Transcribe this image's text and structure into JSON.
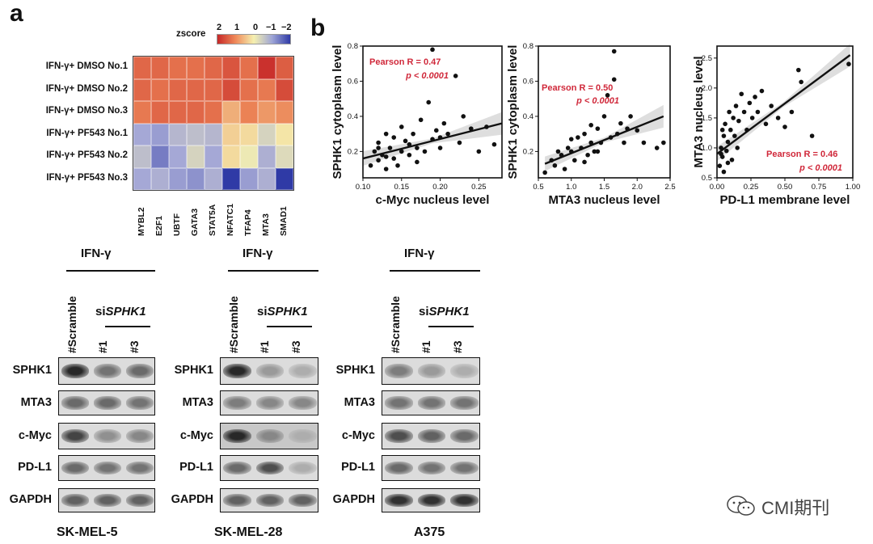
{
  "panel_a": {
    "letter": "a",
    "heatmap": {
      "zscore_label": "zscore",
      "zscore_ticks": [
        "2",
        "1",
        "0",
        "−1",
        "−2"
      ],
      "rows": [
        "IFN-γ+ DMSO No.1",
        "IFN-γ+ DMSO No.2",
        "IFN-γ+ DMSO No.3",
        "IFN-γ+ PF543 No.1",
        "IFN-γ+ PF543 No.2",
        "IFN-γ+ PF543 No.3"
      ],
      "columns": [
        "MYBL2",
        "E2F1",
        "UBTF",
        "GATA3",
        "STAT5A",
        "NFATC1",
        "TFAP4",
        "MTA3",
        "SMAD1"
      ],
      "values": [
        [
          1.3,
          1.3,
          1.2,
          1.2,
          1.3,
          1.5,
          1.2,
          1.9,
          1.4
        ],
        [
          1.3,
          1.2,
          1.3,
          1.3,
          1.3,
          1.6,
          1.2,
          1.1,
          1.6
        ],
        [
          1.1,
          1.3,
          1.3,
          1.3,
          1.2,
          0.6,
          1.0,
          0.8,
          0.9
        ],
        [
          -1.0,
          -1.1,
          -0.8,
          -0.7,
          -0.8,
          0.3,
          0.2,
          -0.4,
          0.1
        ],
        [
          -0.7,
          -1.4,
          -1.0,
          -0.4,
          -1.0,
          0.2,
          -0.1,
          -0.9,
          -0.3
        ],
        [
          -1.0,
          -0.9,
          -1.1,
          -1.2,
          -0.9,
          -2.0,
          -1.1,
          -0.9,
          -2.0
        ]
      ]
    }
  },
  "panel_b": {
    "letter": "b",
    "chart_data": [
      {
        "type": "scatter",
        "xlabel": "c-Myc nucleus level",
        "ylabel": "SPHK1 cytoplasm level",
        "xlim": [
          0.1,
          0.28
        ],
        "ylim": [
          0.05,
          0.8
        ],
        "xticks": [
          "0.10",
          "0.15",
          "0.20",
          "0.25"
        ],
        "yticks": [
          "0.2",
          "0.4",
          "0.6",
          "0.8"
        ],
        "annotation_r": "Pearson R = 0.47",
        "annotation_p": "p < 0.0001",
        "fit": [
          [
            0.1,
            0.16
          ],
          [
            0.28,
            0.36
          ]
        ],
        "points": [
          [
            0.11,
            0.12
          ],
          [
            0.115,
            0.2
          ],
          [
            0.12,
            0.15
          ],
          [
            0.12,
            0.25
          ],
          [
            0.125,
            0.18
          ],
          [
            0.13,
            0.1
          ],
          [
            0.13,
            0.3
          ],
          [
            0.135,
            0.22
          ],
          [
            0.14,
            0.16
          ],
          [
            0.14,
            0.28
          ],
          [
            0.145,
            0.12
          ],
          [
            0.15,
            0.2
          ],
          [
            0.15,
            0.34
          ],
          [
            0.155,
            0.26
          ],
          [
            0.16,
            0.18
          ],
          [
            0.165,
            0.3
          ],
          [
            0.17,
            0.22
          ],
          [
            0.175,
            0.38
          ],
          [
            0.18,
            0.2
          ],
          [
            0.185,
            0.48
          ],
          [
            0.19,
            0.27
          ],
          [
            0.195,
            0.32
          ],
          [
            0.2,
            0.22
          ],
          [
            0.205,
            0.36
          ],
          [
            0.21,
            0.3
          ],
          [
            0.22,
            0.63
          ],
          [
            0.225,
            0.25
          ],
          [
            0.23,
            0.4
          ],
          [
            0.24,
            0.33
          ],
          [
            0.25,
            0.2
          ],
          [
            0.26,
            0.34
          ],
          [
            0.27,
            0.24
          ],
          [
            0.19,
            0.78
          ],
          [
            0.12,
            0.22
          ],
          [
            0.13,
            0.17
          ],
          [
            0.16,
            0.24
          ],
          [
            0.17,
            0.14
          ],
          [
            0.2,
            0.28
          ]
        ]
      },
      {
        "type": "scatter",
        "xlabel": "MTA3 nucleus level",
        "ylabel": "SPHK1 cytoplasm level",
        "xlim": [
          0.5,
          2.5
        ],
        "ylim": [
          0.05,
          0.8
        ],
        "xticks": [
          "0.5",
          "1.0",
          "1.5",
          "2.0",
          "2.5"
        ],
        "yticks": [
          "0.2",
          "0.4",
          "0.6",
          "0.8"
        ],
        "annotation_r": "Pearson R = 0.50",
        "annotation_p": "p < 0.0001",
        "fit": [
          [
            0.6,
            0.13
          ],
          [
            2.4,
            0.4
          ]
        ],
        "points": [
          [
            0.6,
            0.08
          ],
          [
            0.7,
            0.15
          ],
          [
            0.75,
            0.12
          ],
          [
            0.8,
            0.2
          ],
          [
            0.85,
            0.18
          ],
          [
            0.9,
            0.1
          ],
          [
            0.95,
            0.22
          ],
          [
            1.0,
            0.2
          ],
          [
            1.05,
            0.15
          ],
          [
            1.1,
            0.28
          ],
          [
            1.15,
            0.22
          ],
          [
            1.2,
            0.3
          ],
          [
            1.25,
            0.18
          ],
          [
            1.3,
            0.25
          ],
          [
            1.35,
            0.2
          ],
          [
            1.4,
            0.33
          ],
          [
            1.45,
            0.25
          ],
          [
            1.5,
            0.4
          ],
          [
            1.55,
            0.52
          ],
          [
            1.6,
            0.28
          ],
          [
            1.65,
            0.61
          ],
          [
            1.7,
            0.3
          ],
          [
            1.75,
            0.36
          ],
          [
            1.8,
            0.25
          ],
          [
            1.85,
            0.33
          ],
          [
            1.9,
            0.4
          ],
          [
            2.0,
            0.32
          ],
          [
            2.1,
            0.25
          ],
          [
            2.3,
            0.22
          ],
          [
            2.4,
            0.25
          ],
          [
            1.65,
            0.77
          ],
          [
            1.3,
            0.35
          ],
          [
            1.0,
            0.27
          ],
          [
            1.2,
            0.14
          ],
          [
            1.4,
            0.2
          ]
        ]
      },
      {
        "type": "scatter",
        "xlabel": "PD-L1 membrane level",
        "ylabel": "MTA3 nucleus level",
        "xlim": [
          0.0,
          1.0
        ],
        "ylim": [
          0.5,
          2.7
        ],
        "xticks": [
          "0.00",
          "0.25",
          "0.50",
          "0.75",
          "1.00"
        ],
        "yticks": [
          "0.5",
          "1.0",
          "1.5",
          "2.0",
          "2.5"
        ],
        "annotation_r": "Pearson R = 0.46",
        "annotation_p": "p < 0.0001",
        "fit": [
          [
            0.0,
            0.9
          ],
          [
            0.98,
            2.55
          ]
        ],
        "points": [
          [
            0.02,
            0.7
          ],
          [
            0.03,
            1.0
          ],
          [
            0.04,
            0.85
          ],
          [
            0.05,
            1.2
          ],
          [
            0.05,
            0.6
          ],
          [
            0.06,
            1.4
          ],
          [
            0.07,
            0.95
          ],
          [
            0.08,
            1.1
          ],
          [
            0.09,
            1.6
          ],
          [
            0.1,
            1.3
          ],
          [
            0.11,
            0.8
          ],
          [
            0.12,
            1.5
          ],
          [
            0.13,
            1.2
          ],
          [
            0.14,
            1.7
          ],
          [
            0.15,
            1.0
          ],
          [
            0.16,
            1.45
          ],
          [
            0.18,
            1.9
          ],
          [
            0.2,
            1.6
          ],
          [
            0.22,
            1.3
          ],
          [
            0.24,
            1.75
          ],
          [
            0.26,
            1.5
          ],
          [
            0.28,
            1.85
          ],
          [
            0.3,
            1.6
          ],
          [
            0.33,
            1.95
          ],
          [
            0.36,
            1.4
          ],
          [
            0.4,
            1.7
          ],
          [
            0.45,
            1.5
          ],
          [
            0.5,
            1.35
          ],
          [
            0.55,
            1.6
          ],
          [
            0.6,
            2.3
          ],
          [
            0.62,
            2.1
          ],
          [
            0.7,
            1.2
          ],
          [
            0.97,
            2.4
          ],
          [
            0.04,
            1.3
          ],
          [
            0.08,
            0.75
          ],
          [
            0.03,
            0.9
          ]
        ]
      }
    ]
  },
  "panel_c": {
    "header": "IFN-γ",
    "lanes": [
      "#Scramble",
      "#1",
      "#3"
    ],
    "si_label": "si",
    "si_gene": "SPHK1",
    "proteins": [
      "SPHK1",
      "MTA3",
      "c-Myc",
      "PD-L1",
      "GAPDH"
    ],
    "cell_lines": [
      "SK-MEL-5",
      "SK-MEL-28",
      "A375"
    ]
  },
  "watermark": {
    "text": "CMI期刊"
  }
}
